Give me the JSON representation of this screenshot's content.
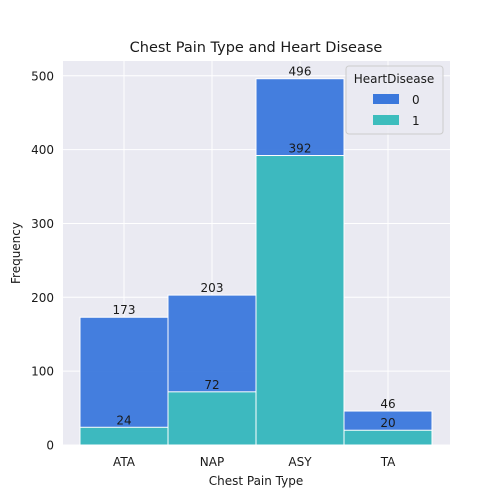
{
  "chart_data": {
    "type": "bar",
    "stacking": "overlay",
    "title": "Chest Pain Type and Heart Disease",
    "xlabel": "Chest Pain Type",
    "ylabel": "Frequency",
    "categories": [
      "ATA",
      "NAP",
      "ASY",
      "TA"
    ],
    "ylim": [
      0,
      520
    ],
    "yticks": [
      0,
      100,
      200,
      300,
      400,
      500
    ],
    "grid": true,
    "legend": {
      "title": "HeartDisease",
      "placement": "top-right"
    },
    "series": [
      {
        "name": "0",
        "values": [
          173,
          203,
          496,
          46
        ],
        "color": "#3b78dc"
      },
      {
        "name": "1",
        "values": [
          24,
          72,
          392,
          20
        ],
        "color": "#3dbdbd"
      }
    ]
  }
}
